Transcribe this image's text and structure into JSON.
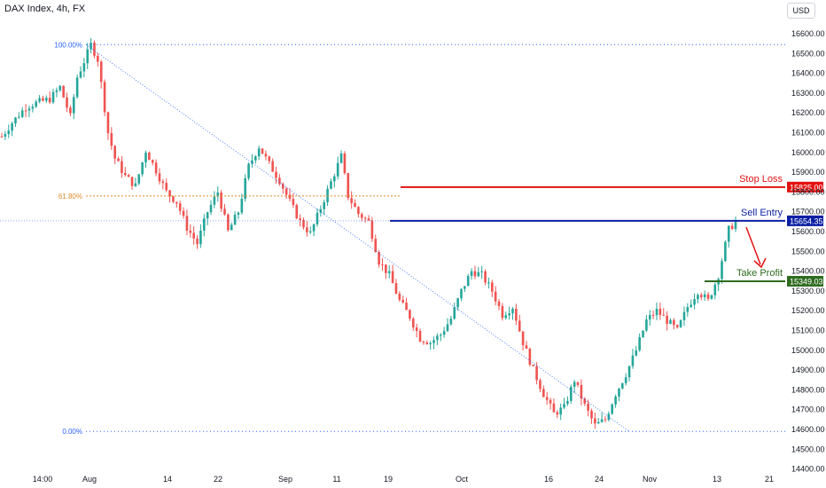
{
  "header": {
    "title": "DAX Index, 4h, FX"
  },
  "currency_button": "USD",
  "colors": {
    "up": "#26a69a",
    "down": "#ef5350",
    "fib": "#2962ff",
    "stop": "#e31212",
    "entry": "#0b1fa3",
    "profit": "#2e6b1f",
    "fib618": "#e08a2a"
  },
  "chart_data": {
    "type": "candlestick",
    "title": "DAX Index, 4h, FX",
    "y_axis": {
      "ylim": [
        14400,
        16700
      ],
      "ticks": [
        14400,
        14500,
        14600,
        14700,
        14800,
        14900,
        15000,
        15100,
        15200,
        15300,
        15400,
        15500,
        15600,
        15700,
        15800,
        15900,
        16000,
        16100,
        16200,
        16300,
        16400,
        16500,
        16600
      ],
      "tick_labels": [
        "14400.00",
        "14500.00",
        "14600.00",
        "14700.00",
        "14800.00",
        "14900.00",
        "15000.00",
        "15100.00",
        "15200.00",
        "15300.00",
        "15400.00",
        "15500.00",
        "15600.00",
        "15700.00",
        "15800.00",
        "15900.00",
        "16000.00",
        "16100.00",
        "16200.00",
        "16300.00",
        "16400.00",
        "16500.00",
        "16600.00"
      ]
    },
    "x_axis": {
      "tick_labels": [
        "14:00",
        "Aug",
        "14",
        "22",
        "Sep",
        "11",
        "19",
        "Oct",
        "16",
        "24",
        "Nov",
        "13",
        "21"
      ]
    },
    "price_path": [
      [
        0,
        16080
      ],
      [
        3,
        16150
      ],
      [
        7,
        16230
      ],
      [
        10,
        16250
      ],
      [
        14,
        16270
      ],
      [
        17,
        16330
      ],
      [
        20,
        16180
      ],
      [
        22,
        16380
      ],
      [
        24,
        16460
      ],
      [
        26,
        16545
      ],
      [
        28,
        16470
      ],
      [
        31,
        16100
      ],
      [
        33,
        15970
      ],
      [
        36,
        15880
      ],
      [
        39,
        15830
      ],
      [
        42,
        16010
      ],
      [
        45,
        15910
      ],
      [
        48,
        15800
      ],
      [
        51,
        15750
      ],
      [
        54,
        15620
      ],
      [
        57,
        15540
      ],
      [
        60,
        15700
      ],
      [
        63,
        15800
      ],
      [
        66,
        15600
      ],
      [
        69,
        15700
      ],
      [
        72,
        15930
      ],
      [
        75,
        16030
      ],
      [
        78,
        15940
      ],
      [
        81,
        15860
      ],
      [
        84,
        15750
      ],
      [
        87,
        15650
      ],
      [
        90,
        15590
      ],
      [
        93,
        15720
      ],
      [
        96,
        15850
      ],
      [
        99,
        15980
      ],
      [
        101,
        15780
      ],
      [
        104,
        15690
      ],
      [
        107,
        15650
      ],
      [
        110,
        15450
      ],
      [
        113,
        15380
      ],
      [
        116,
        15250
      ],
      [
        119,
        15170
      ],
      [
        122,
        15060
      ],
      [
        125,
        15040
      ],
      [
        128,
        15080
      ],
      [
        131,
        15160
      ],
      [
        134,
        15300
      ],
      [
        137,
        15400
      ],
      [
        140,
        15380
      ],
      [
        143,
        15300
      ],
      [
        146,
        15180
      ],
      [
        149,
        15220
      ],
      [
        152,
        15040
      ],
      [
        155,
        14900
      ],
      [
        158,
        14780
      ],
      [
        161,
        14680
      ],
      [
        164,
        14710
      ],
      [
        167,
        14850
      ],
      [
        170,
        14720
      ],
      [
        173,
        14620
      ],
      [
        176,
        14650
      ],
      [
        179,
        14780
      ],
      [
        182,
        14880
      ],
      [
        185,
        15000
      ],
      [
        188,
        15150
      ],
      [
        191,
        15200
      ],
      [
        194,
        15150
      ],
      [
        197,
        15100
      ],
      [
        200,
        15220
      ],
      [
        203,
        15300
      ],
      [
        206,
        15250
      ],
      [
        209,
        15380
      ],
      [
        212,
        15610
      ],
      [
        214,
        15650
      ]
    ],
    "fib_levels": [
      {
        "label": "100.00%",
        "price": 16545
      },
      {
        "label": "61.80%",
        "price": 15780
      },
      {
        "label": "0.00%",
        "price": 14590
      }
    ],
    "annotations": [
      {
        "name": "Stop Loss",
        "price": 15825.0,
        "label": "15825.00"
      },
      {
        "name": "Sell Entry",
        "price": 15654.35,
        "label": "15654.35"
      },
      {
        "name": "Take Profit",
        "price": 15349.03,
        "label": "15349.03"
      }
    ],
    "grid": false
  }
}
